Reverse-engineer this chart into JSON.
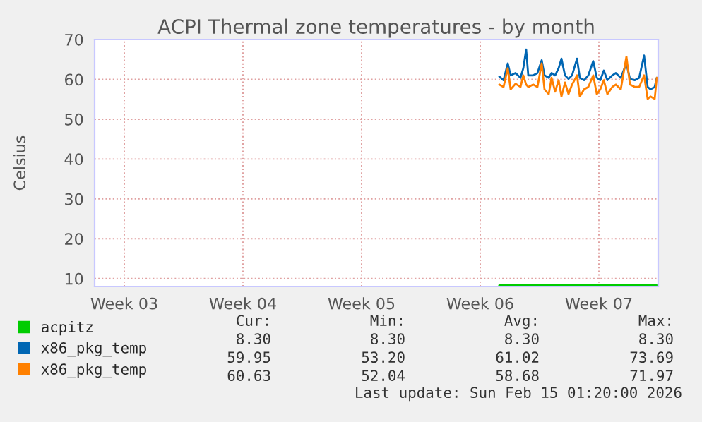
{
  "chart_data": {
    "type": "line",
    "title": "ACPI Thermal zone temperatures - by month",
    "ylabel": "Celsius",
    "xlim": [
      "2026-01-12T19:00",
      "2026-02-15T01:00"
    ],
    "xticks": [
      {
        "value": "2026-01-14T13:00",
        "label": "Week 03"
      },
      {
        "value": "2026-01-21T13:00",
        "label": "Week 04"
      },
      {
        "value": "2026-01-28T13:00",
        "label": "Week 05"
      },
      {
        "value": "2026-02-04T13:00",
        "label": "Week 06"
      },
      {
        "value": "2026-02-11T13:00",
        "label": "Week 07"
      }
    ],
    "ylim": [
      8,
      70
    ],
    "yticks": [
      10,
      20,
      30,
      40,
      50,
      60,
      70
    ],
    "grid": true,
    "legend": "bottom",
    "series": [
      {
        "name": "acpitz",
        "color": "#00cc00",
        "x": [
          "2026-02-05T16:00",
          "2026-02-14T23:00"
        ],
        "values": [
          8.3,
          8.3
        ]
      },
      {
        "name": "x86_pkg_temp",
        "color": "#0066b3",
        "x": [
          "2026-02-05T16:00",
          "2026-02-05T22:00",
          "2026-02-06T04:00",
          "2026-02-06T08:00",
          "2026-02-06T15:00",
          "2026-02-06T22:00",
          "2026-02-07T02:00",
          "2026-02-07T06:00",
          "2026-02-07T09:00",
          "2026-02-07T16:00",
          "2026-02-07T22:00",
          "2026-02-08T04:00",
          "2026-02-08T08:00",
          "2026-02-08T14:00",
          "2026-02-08T18:00",
          "2026-02-08T23:00",
          "2026-02-09T04:00",
          "2026-02-09T08:00",
          "2026-02-09T13:00",
          "2026-02-09T18:00",
          "2026-02-09T23:00",
          "2026-02-10T06:00",
          "2026-02-10T10:00",
          "2026-02-10T16:00",
          "2026-02-10T22:00",
          "2026-02-11T05:00",
          "2026-02-11T10:00",
          "2026-02-11T15:00",
          "2026-02-11T20:00",
          "2026-02-12T01:00",
          "2026-02-12T08:00",
          "2026-02-12T13:00",
          "2026-02-12T20:00",
          "2026-02-13T04:00",
          "2026-02-13T09:00",
          "2026-02-13T16:00",
          "2026-02-13T22:00",
          "2026-02-14T05:00",
          "2026-02-14T10:00",
          "2026-02-14T14:00",
          "2026-02-14T20:00",
          "2026-02-14T23:00"
        ],
        "values": [
          60.7,
          59.8,
          64.0,
          61.0,
          61.6,
          60.4,
          62.8,
          67.5,
          61.0,
          61.0,
          61.6,
          64.8,
          61.0,
          60.4,
          61.6,
          61.0,
          62.8,
          65.2,
          61.0,
          60.1,
          61.0,
          65.2,
          60.4,
          59.8,
          61.0,
          64.6,
          60.4,
          59.8,
          62.2,
          59.8,
          61.0,
          61.6,
          60.4,
          64.0,
          60.1,
          59.8,
          60.4,
          66.0,
          58.1,
          57.5,
          58.1,
          60.4
        ]
      },
      {
        "name": "x86_pkg_temp",
        "color": "#ff8000",
        "x": [
          "2026-02-05T16:00",
          "2026-02-05T22:00",
          "2026-02-06T04:00",
          "2026-02-06T08:00",
          "2026-02-06T15:00",
          "2026-02-06T22:00",
          "2026-02-07T02:00",
          "2026-02-07T06:00",
          "2026-02-07T09:00",
          "2026-02-07T16:00",
          "2026-02-07T22:00",
          "2026-02-08T04:00",
          "2026-02-08T08:00",
          "2026-02-08T14:00",
          "2026-02-08T18:00",
          "2026-02-08T23:00",
          "2026-02-09T04:00",
          "2026-02-09T08:00",
          "2026-02-09T13:00",
          "2026-02-09T18:00",
          "2026-02-09T23:00",
          "2026-02-10T06:00",
          "2026-02-10T10:00",
          "2026-02-10T16:00",
          "2026-02-10T22:00",
          "2026-02-11T05:00",
          "2026-02-11T10:00",
          "2026-02-11T15:00",
          "2026-02-11T20:00",
          "2026-02-12T01:00",
          "2026-02-12T08:00",
          "2026-02-12T13:00",
          "2026-02-12T20:00",
          "2026-02-13T04:00",
          "2026-02-13T09:00",
          "2026-02-13T16:00",
          "2026-02-13T22:00",
          "2026-02-14T05:00",
          "2026-02-14T10:00",
          "2026-02-14T14:00",
          "2026-02-14T20:00",
          "2026-02-14T23:00"
        ],
        "values": [
          58.7,
          58.1,
          62.8,
          57.5,
          58.9,
          58.1,
          61.0,
          58.7,
          58.1,
          58.7,
          58.1,
          64.0,
          57.5,
          56.3,
          60.4,
          56.9,
          59.8,
          55.7,
          59.2,
          56.3,
          58.7,
          61.0,
          55.7,
          57.5,
          58.1,
          61.0,
          56.3,
          57.5,
          59.8,
          56.3,
          58.1,
          58.7,
          57.5,
          65.7,
          58.7,
          58.1,
          58.1,
          61.0,
          55.1,
          55.7,
          55.1,
          60.4
        ]
      }
    ],
    "annotations": [
      "Cur:",
      "Min:",
      "Avg:",
      "Max:",
      "8.30",
      "8.30",
      "8.30",
      "8.30",
      "59.95",
      "53.20",
      "61.02",
      "73.69",
      "60.63",
      "52.04",
      "58.68",
      "71.97",
      "Last update: Sun Feb 15 01:20:00 2026"
    ]
  }
}
